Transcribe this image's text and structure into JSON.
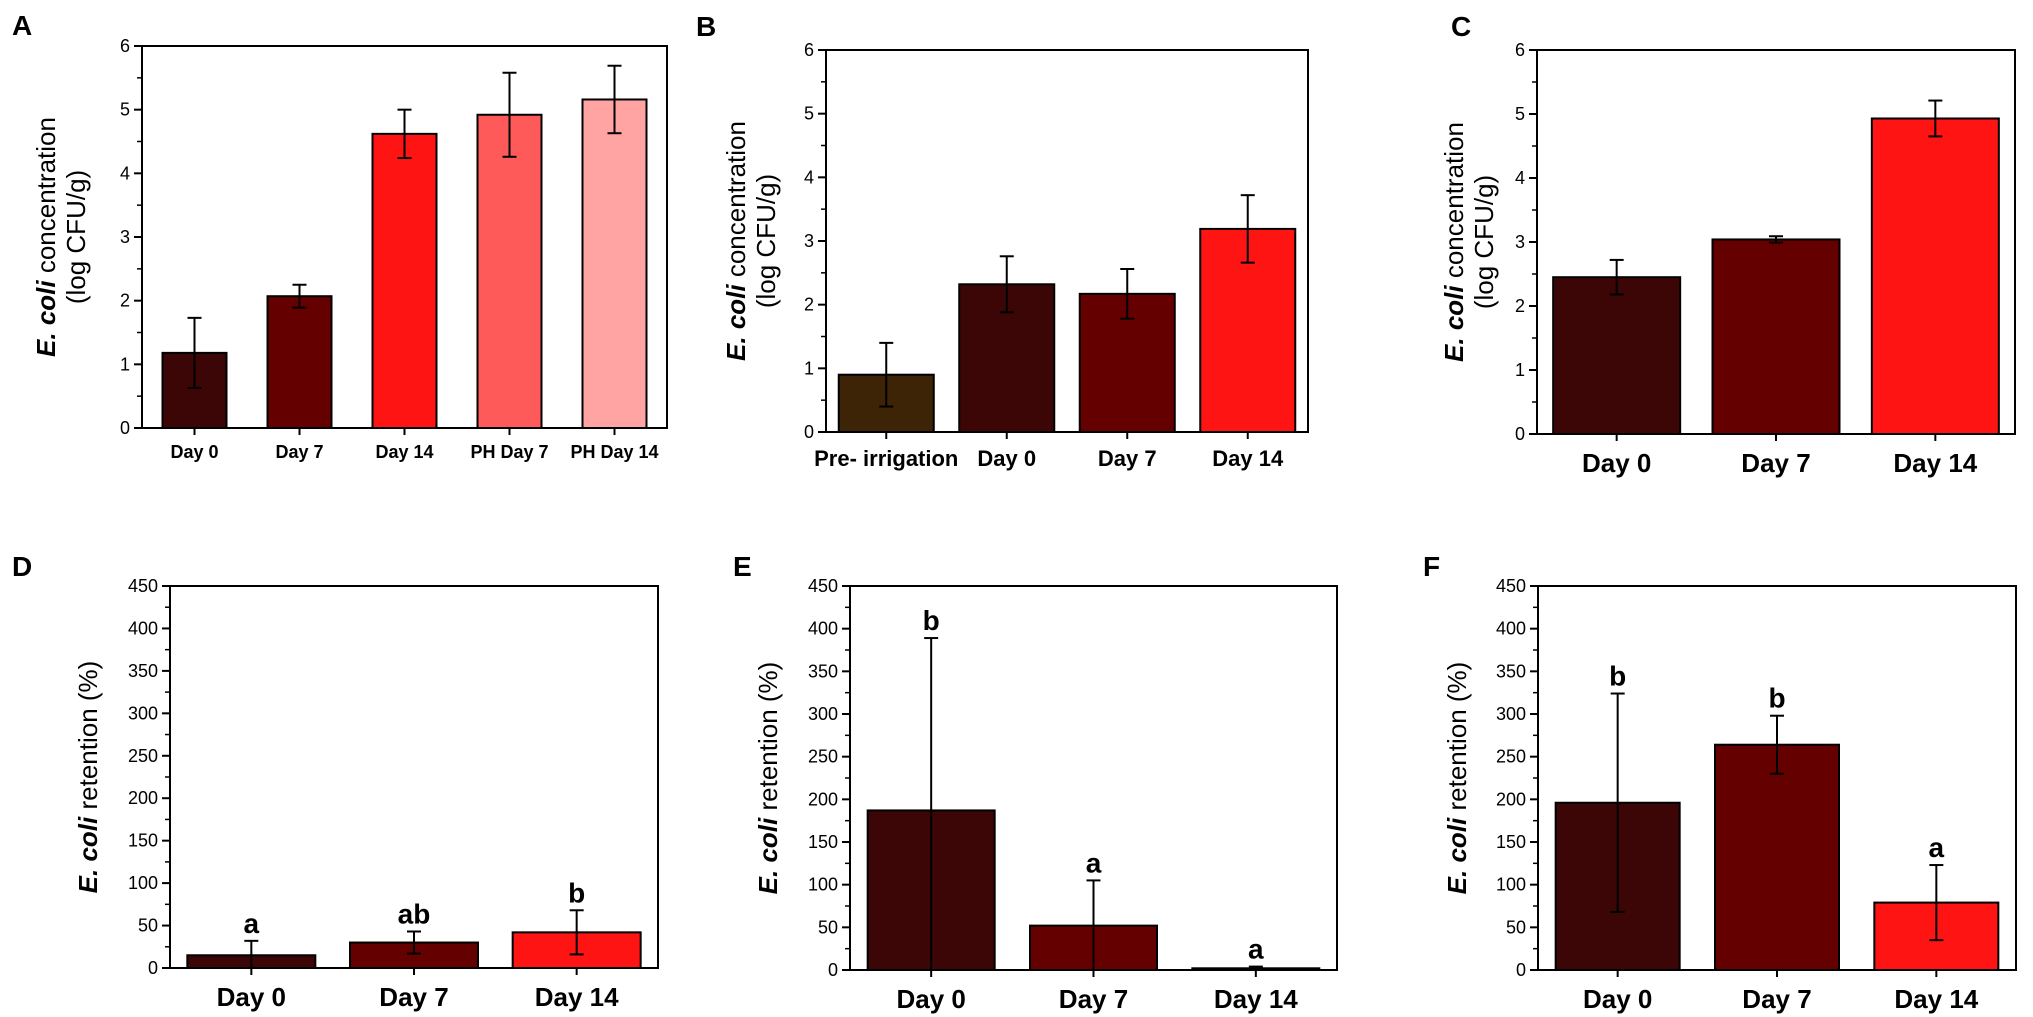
{
  "chart_data": [
    {
      "panel": "A",
      "type": "bar",
      "ylabel_italic": "E. coli",
      "ylabel_rest": " concentration",
      "ylabel_line2": "(log CFU/g)",
      "ylim": [
        0,
        6
      ],
      "yticks": [
        0,
        1,
        2,
        3,
        4,
        5,
        6
      ],
      "categories": [
        "Day 0",
        "Day 7",
        "Day 14",
        "PH Day 7",
        "PH Day 14"
      ],
      "values": [
        1.18,
        2.07,
        4.62,
        4.92,
        5.16
      ],
      "errors": [
        0.55,
        0.18,
        0.38,
        0.66,
        0.53
      ],
      "colors": [
        "#3d0606",
        "#650000",
        "#ff1414",
        "#ff5a5a",
        "#ffa3a3"
      ],
      "labels": []
    },
    {
      "panel": "B",
      "type": "bar",
      "ylabel_italic": "E. coli",
      "ylabel_rest": " concentration",
      "ylabel_line2": "(log CFU/g)",
      "ylim": [
        0,
        6
      ],
      "yticks": [
        0,
        1,
        2,
        3,
        4,
        5,
        6
      ],
      "categories": [
        "Pre- irrigation",
        "Day 0",
        "Day 7",
        "Day 14"
      ],
      "values": [
        0.9,
        2.32,
        2.17,
        3.19
      ],
      "errors": [
        0.5,
        0.44,
        0.39,
        0.53
      ],
      "colors": [
        "#3d2406",
        "#3d0606",
        "#650000",
        "#ff1414"
      ],
      "labels": []
    },
    {
      "panel": "C",
      "type": "bar",
      "ylabel_italic": "E. coli",
      "ylabel_rest": " concentration",
      "ylabel_line2": "(log CFU/g)",
      "ylim": [
        0,
        6
      ],
      "yticks": [
        0,
        1,
        2,
        3,
        4,
        5,
        6
      ],
      "categories": [
        "Day 0",
        "Day 7",
        "Day 14"
      ],
      "values": [
        2.45,
        3.04,
        4.93
      ],
      "errors": [
        0.27,
        0.05,
        0.28
      ],
      "colors": [
        "#3d0606",
        "#650000",
        "#ff1414"
      ],
      "labels": []
    },
    {
      "panel": "D",
      "type": "bar",
      "ylabel_italic": "E. coli",
      "ylabel_rest": " retention (%)",
      "ylabel_line2": "",
      "ylim": [
        0,
        450
      ],
      "yticks": [
        0,
        50,
        100,
        150,
        200,
        250,
        300,
        350,
        400,
        450
      ],
      "categories": [
        "Day 0",
        "Day 7",
        "Day 14"
      ],
      "values": [
        15,
        30,
        42
      ],
      "errors": [
        17,
        13,
        26
      ],
      "colors": [
        "#3d0606",
        "#650000",
        "#ff1414"
      ],
      "labels": [
        "a",
        "ab",
        "b"
      ]
    },
    {
      "panel": "E",
      "type": "bar",
      "ylabel_italic": "E. coli",
      "ylabel_rest": " retention (%)",
      "ylabel_line2": "",
      "ylim": [
        0,
        450
      ],
      "yticks": [
        0,
        50,
        100,
        150,
        200,
        250,
        300,
        350,
        400,
        450
      ],
      "categories": [
        "Day 0",
        "Day 7",
        "Day 14"
      ],
      "values": [
        187,
        52,
        2
      ],
      "errors": [
        202,
        53,
        2
      ],
      "colors": [
        "#3d0606",
        "#650000",
        "#ff1414"
      ],
      "labels": [
        "b",
        "a",
        "a"
      ]
    },
    {
      "panel": "F",
      "type": "bar",
      "ylabel_italic": "E. coli",
      "ylabel_rest": " retention (%)",
      "ylabel_line2": "",
      "ylim": [
        0,
        450
      ],
      "yticks": [
        0,
        50,
        100,
        150,
        200,
        250,
        300,
        350,
        400,
        450
      ],
      "categories": [
        "Day 0",
        "Day 7",
        "Day 14"
      ],
      "values": [
        196,
        264,
        79
      ],
      "errors": [
        128,
        34,
        44
      ],
      "colors": [
        "#3d0606",
        "#650000",
        "#ff1414"
      ],
      "labels": [
        "b",
        "b",
        "a"
      ]
    }
  ]
}
